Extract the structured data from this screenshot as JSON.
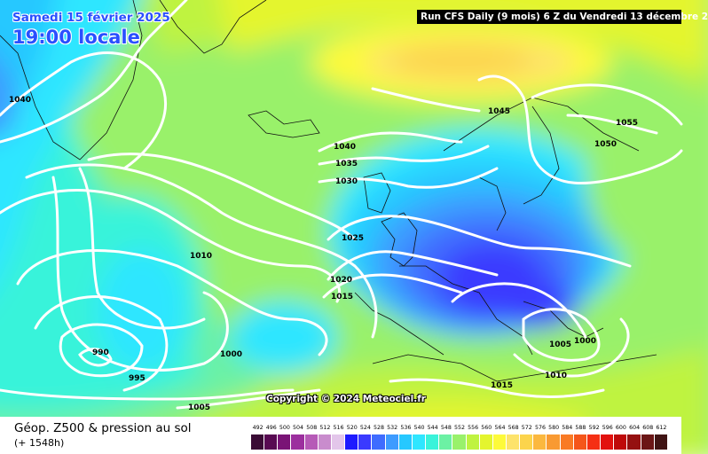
{
  "header": {
    "date": "Samedi 15 février 2025",
    "time": "19:00 locale",
    "run": "Run CFS Daily (9 mois) 6 Z du Vendredi 13 décembre 2"
  },
  "copyright": "Copyright © 2024 Meteociel.fr",
  "legend": {
    "title": "Géop. Z500 & pression au sol",
    "subtitle": "(+ 1548h)",
    "values": [
      "492",
      "496",
      "500",
      "504",
      "508",
      "512",
      "516",
      "520",
      "524",
      "528",
      "532",
      "536",
      "540",
      "544",
      "548",
      "552",
      "556",
      "560",
      "564",
      "568",
      "572",
      "576",
      "580",
      "584",
      "588",
      "592",
      "596",
      "600",
      "604",
      "608",
      "612"
    ],
    "colors": [
      "#3a0b35",
      "#580a52",
      "#7a1476",
      "#9c2f9e",
      "#b65ab7",
      "#c98ccd",
      "#e3c6ea",
      "#1d1aff",
      "#3a3aff",
      "#3f6cff",
      "#3d9bff",
      "#26c8ff",
      "#2fe6ff",
      "#39f3da",
      "#6cf1a4",
      "#99f16b",
      "#bff340",
      "#e4f52e",
      "#fdfa3a",
      "#fde36b",
      "#fcd44c",
      "#fbb83f",
      "#f99a32",
      "#f97a25",
      "#f5561a",
      "#f53014",
      "#e2110e",
      "#bf0a0a",
      "#951010",
      "#6b1616",
      "#401414"
    ]
  },
  "isobars": [
    "1040",
    "1010",
    "990",
    "995",
    "1000",
    "1005",
    "1040",
    "1035",
    "1030",
    "1025",
    "1020",
    "1015",
    "1045",
    "1050",
    "1055",
    "1005",
    "1000",
    "1010",
    "1015"
  ]
}
